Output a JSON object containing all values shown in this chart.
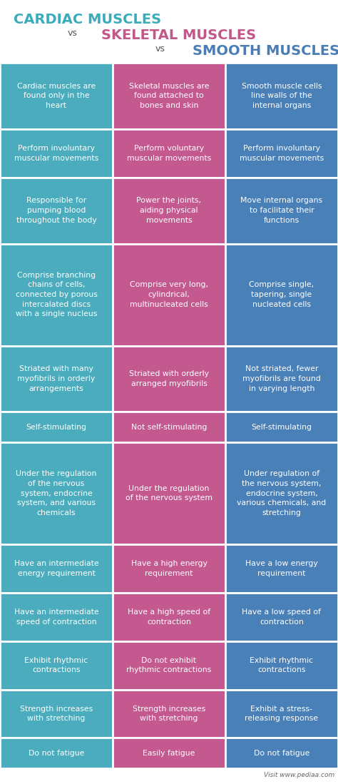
{
  "title_color1": "#3aacbb",
  "title_color2": "#c2578a",
  "title_color3": "#4a7db5",
  "vs_color": "#555555",
  "bg_color": "#ffffff",
  "col_colors": [
    "#4aacbc",
    "#c45990",
    "#4a80b8"
  ],
  "text_color": "#ffffff",
  "footer": "Visit www.pediaa.com",
  "rows": [
    [
      "Cardiac muscles are\nfound only in the\nheart",
      "Skeletal muscles are\nfound attached to\nbones and skin",
      "Smooth muscle cells\nline walls of the\ninternal organs"
    ],
    [
      "Perform involuntary\nmuscular movements",
      "Perform voluntary\nmuscular movements",
      "Perform involuntary\nmuscular movements"
    ],
    [
      "Responsible for\npumping blood\nthroughout the body",
      "Power the joints,\naiding physical\nmovements",
      "Move internal organs\nto facilitate their\nfunctions"
    ],
    [
      "Comprise branching\nchains of cells,\nconnected by porous\nintercalated discs\nwith a single nucleus",
      "Comprise very long,\ncylindrical,\nmultinucleated cells",
      "Comprise single,\ntapering, single\nnucleated cells"
    ],
    [
      "Striated with many\nmyofibrils in orderly\narrangements",
      "Striated with orderly\narranged myofibrils",
      "Not striated, fewer\nmyofibrils are found\nin varying length"
    ],
    [
      "Self-stimulating",
      "Not self-stimulating",
      "Self-stimulating"
    ],
    [
      "Under the regulation\nof the nervous\nsystem, endocrine\nsystem, and various\nchemicals",
      "Under the regulation\nof the nervous system",
      "Under regulation of\nthe nervous system,\nendocrine system,\nvarious chemicals, and\nstretching"
    ],
    [
      "Have an intermediate\nenergy requirement",
      "Have a high energy\nrequirement",
      "Have a low energy\nrequirement"
    ],
    [
      "Have an intermediate\nspeed of contraction",
      "Have a high speed of\ncontraction",
      "Have a low speed of\ncontraction"
    ],
    [
      "Exhibit rhythmic\ncontractions",
      "Do not exhibit\nrhythmic contractions",
      "Exhibit rhythmic\ncontractions"
    ],
    [
      "Strength increases\nwith stretching",
      "Strength increases\nwith stretching",
      "Exhibit a stress-\nreleasing response"
    ],
    [
      "Do not fatigue",
      "Easily fatigue",
      "Do not fatigue"
    ]
  ],
  "row_line_counts": [
    3,
    2,
    3,
    5,
    3,
    1,
    5,
    2,
    2,
    2,
    2,
    1
  ]
}
